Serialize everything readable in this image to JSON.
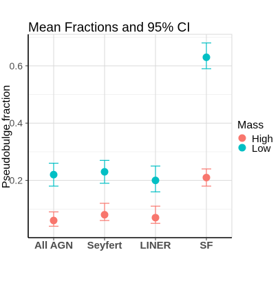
{
  "chart_data": {
    "type": "scatter",
    "title": "Mean Fractions and 95% CI",
    "xlabel": "",
    "ylabel": "Pseudobulge fraction",
    "categories": [
      "All AGN",
      "Seyfert",
      "LINER",
      "SF"
    ],
    "ylim": [
      0.0,
      0.71
    ],
    "yticks": [
      0.2,
      0.4,
      0.6
    ],
    "ytick_labels": [
      "0.2",
      "0.4",
      "0.6"
    ],
    "grid": true,
    "legend": {
      "title": "Mass",
      "position": "right"
    },
    "series": [
      {
        "name": "High",
        "color": "#F8766D",
        "values": [
          0.06,
          0.08,
          0.07,
          0.21
        ],
        "ci_low": [
          0.04,
          0.06,
          0.05,
          0.18
        ],
        "ci_high": [
          0.09,
          0.12,
          0.11,
          0.24
        ]
      },
      {
        "name": "Low",
        "color": "#00BFC4",
        "values": [
          0.22,
          0.23,
          0.2,
          0.63
        ],
        "ci_low": [
          0.18,
          0.19,
          0.16,
          0.59
        ],
        "ci_high": [
          0.26,
          0.27,
          0.25,
          0.68
        ]
      }
    ]
  }
}
